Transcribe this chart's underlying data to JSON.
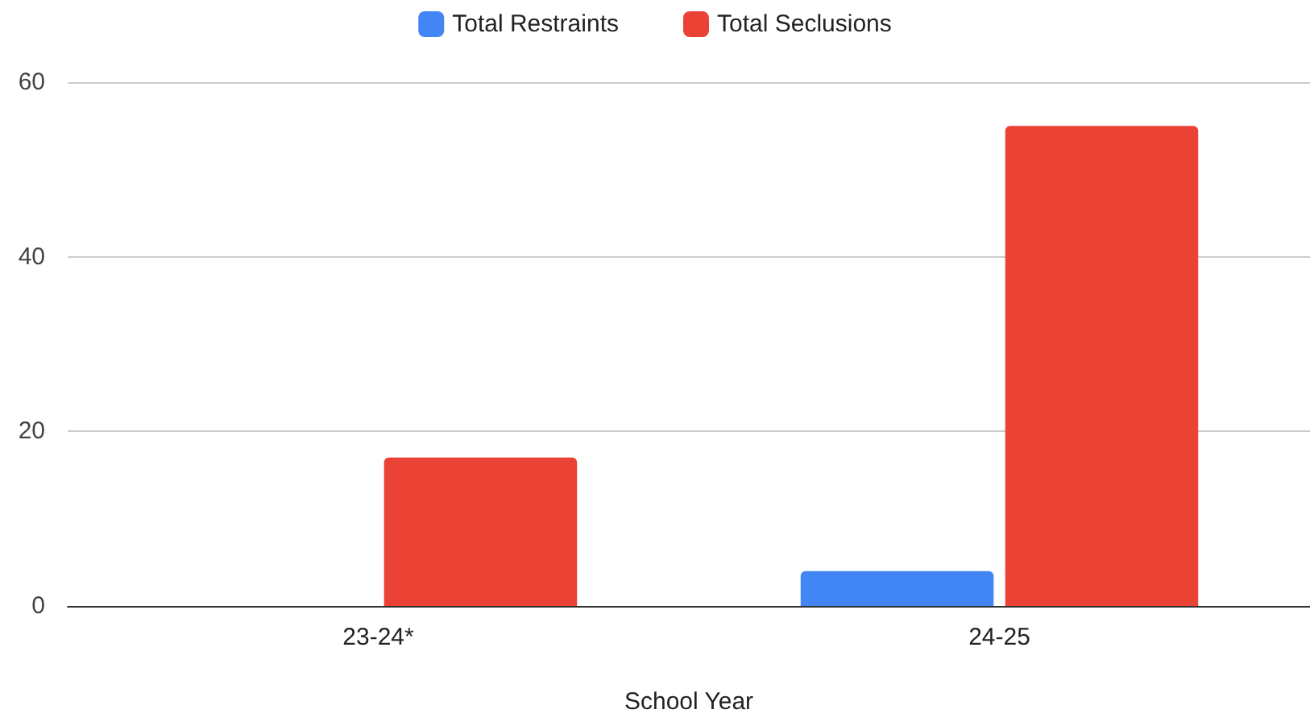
{
  "chart_data": {
    "type": "bar",
    "xlabel": "School Year",
    "categories": [
      "23-24*",
      "24-25"
    ],
    "series": [
      {
        "name": "Total Restraints",
        "color": "#4285f4",
        "values": [
          0,
          4
        ]
      },
      {
        "name": "Total Seclusions",
        "color": "#ea4335",
        "values": [
          17,
          55
        ]
      }
    ],
    "ylim": [
      0,
      60
    ],
    "yticks": [
      0,
      20,
      40,
      60
    ],
    "grid": "y",
    "legend": "top"
  }
}
